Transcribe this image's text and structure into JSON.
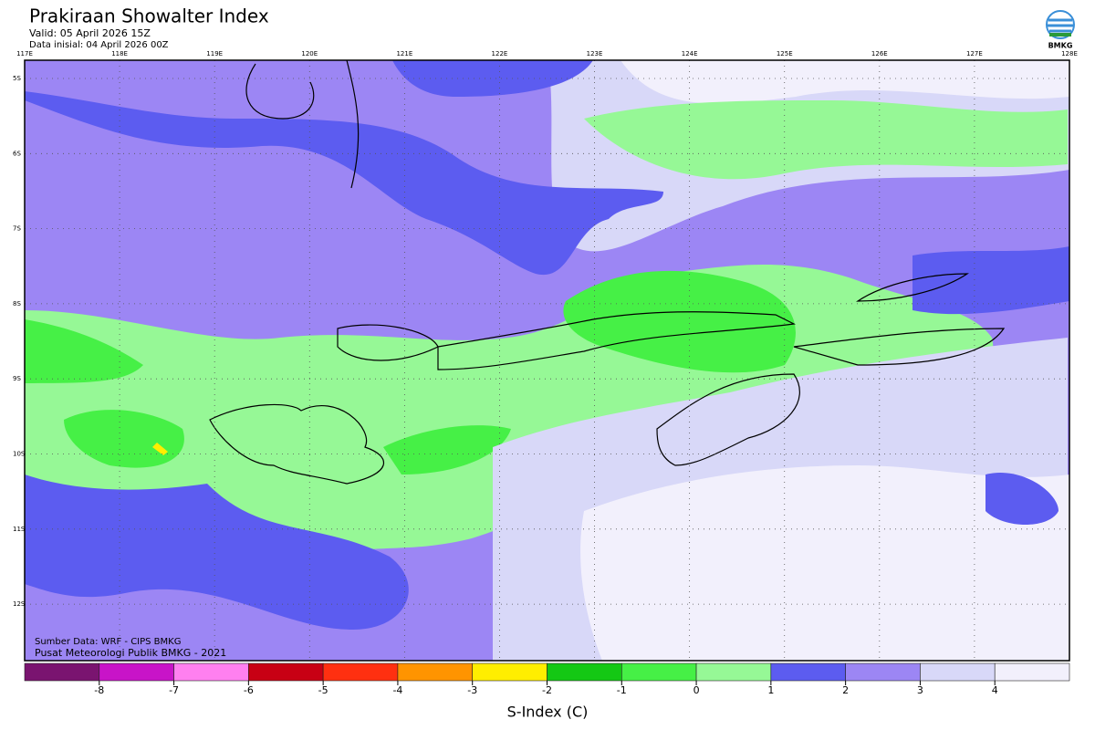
{
  "header": {
    "title": "Prakiraan Showalter Index",
    "valid": "Valid: 05 April 2026 15Z",
    "init": "Data inisial: 04 April 2026 00Z",
    "logo": "BMKG"
  },
  "map": {
    "lon_labels": [
      "117E",
      "118E",
      "119E",
      "120E",
      "121E",
      "122E",
      "123E",
      "124E",
      "125E",
      "126E",
      "127E",
      "128E"
    ],
    "lat_labels": [
      "5S",
      "6S",
      "7S",
      "8S",
      "9S",
      "10S",
      "11S",
      "12S"
    ],
    "credit_source": "Sumber Data: WRF - CIPS BMKG",
    "credit_org": "Pusat Meteorologi Publik BMKG - 2021"
  },
  "colorbar": {
    "colors": [
      "#7a1470",
      "#c814c8",
      "#ff80f0",
      "#c80014",
      "#ff3010",
      "#ff9400",
      "#ffee00",
      "#14c814",
      "#46f046",
      "#96f896",
      "#5c5cf0",
      "#9c86f4",
      "#d8d8f8",
      "#f2f0fc"
    ],
    "ticks": [
      -8,
      -7,
      -6,
      -5,
      -4,
      -3,
      -2,
      -1,
      0,
      1,
      2,
      3,
      4
    ],
    "label": "S-Index (C)"
  }
}
